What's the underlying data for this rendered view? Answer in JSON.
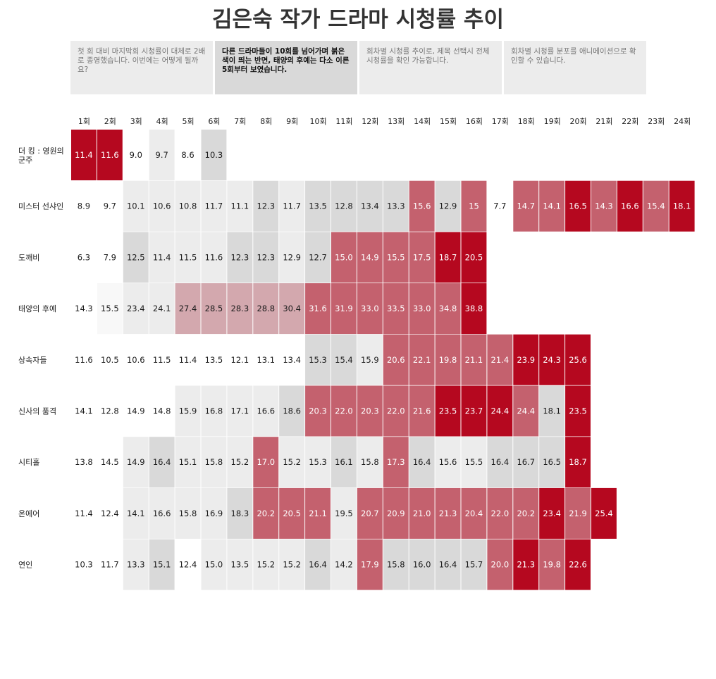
{
  "title": "김은숙 작가 드라마 시청률 추이",
  "steps": [
    {
      "text": "첫 회 대비 마지막회 시청률이 대체로 2배로 종영했습니다. 이번에는 어떻게 될까요?",
      "active": false
    },
    {
      "text": "다른 드라마들이 10회를 넘어가며 붉은색이 띄는 반면, 태양의 후예는 다소 이른 5회부터 보였습니다.",
      "active": true
    },
    {
      "text": "회차별 시청률 추이로, 제목 선택시 전체 시청률을 확인 가능합니다.",
      "active": false
    },
    {
      "text": "회차별 시청률 분포를 애니메이션으로 확인할 수 있습니다.",
      "active": false
    }
  ],
  "colors": {
    "dark_red": "#b5081f",
    "medium_red": "#c4616e",
    "light_pink": "#d3a8ae",
    "light_gray": "#ececec",
    "mid_gray": "#d9d9d9",
    "white": "#ffffff",
    "near_white": "#f8f8f8"
  },
  "chart_data": {
    "type": "heatmap",
    "title": "김은숙 작가 드라마 시청률 추이",
    "columns": [
      "1회",
      "2회",
      "3회",
      "4회",
      "5회",
      "6회",
      "7회",
      "8회",
      "9회",
      "10회",
      "11회",
      "12회",
      "13회",
      "14회",
      "15회",
      "16회",
      "17회",
      "18회",
      "19회",
      "20회",
      "21회",
      "22회",
      "23회",
      "24회"
    ],
    "rows": [
      {
        "name": "더 킹 : 영원의 군주",
        "values": [
          "11.4",
          "11.6",
          "9.0",
          "9.7",
          "8.6",
          "10.3"
        ],
        "colors": [
          "R",
          "R",
          "W",
          "G",
          "W",
          "D"
        ]
      },
      {
        "name": "미스터 선샤인",
        "values": [
          "8.9",
          "9.7",
          "10.1",
          "10.6",
          "10.8",
          "11.7",
          "11.1",
          "12.3",
          "11.7",
          "13.5",
          "12.8",
          "13.4",
          "13.3",
          "15.6",
          "12.9",
          "15",
          "7.7",
          "14.7",
          "14.1",
          "16.5",
          "14.3",
          "16.6",
          "15.4",
          "18.1"
        ],
        "colors": [
          "W",
          "W",
          "G",
          "G",
          "G",
          "G",
          "G",
          "D",
          "G",
          "D",
          "D",
          "D",
          "D",
          "M",
          "D",
          "M",
          "W",
          "M",
          "M",
          "R",
          "M",
          "R",
          "M",
          "R"
        ]
      },
      {
        "name": "도깨비",
        "values": [
          "6.3",
          "7.9",
          "12.5",
          "11.4",
          "11.5",
          "11.6",
          "12.3",
          "12.3",
          "12.9",
          "12.7",
          "15.0",
          "14.9",
          "15.5",
          "17.5",
          "18.7",
          "20.5"
        ],
        "colors": [
          "W",
          "W",
          "D",
          "G",
          "G",
          "G",
          "D",
          "D",
          "G",
          "D",
          "M",
          "M",
          "M",
          "M",
          "R",
          "R"
        ]
      },
      {
        "name": "태양의 후예",
        "values": [
          "14.3",
          "15.5",
          "23.4",
          "24.1",
          "27.4",
          "28.5",
          "28.3",
          "28.8",
          "30.4",
          "31.6",
          "31.9",
          "33.0",
          "33.5",
          "33.0",
          "34.8",
          "38.8"
        ],
        "colors": [
          "W",
          "N",
          "G",
          "G",
          "P",
          "P",
          "P",
          "P",
          "P",
          "M",
          "M",
          "M",
          "M",
          "M",
          "M",
          "R"
        ]
      },
      {
        "name": "상속자들",
        "values": [
          "11.6",
          "10.5",
          "10.6",
          "11.5",
          "11.4",
          "13.5",
          "12.1",
          "13.1",
          "13.4",
          "15.3",
          "15.4",
          "15.9",
          "20.6",
          "22.1",
          "19.8",
          "21.1",
          "21.4",
          "23.9",
          "24.3",
          "25.6"
        ],
        "colors": [
          "W",
          "W",
          "W",
          "W",
          "W",
          "W",
          "W",
          "W",
          "W",
          "D",
          "D",
          "G",
          "M",
          "M",
          "M",
          "M",
          "M",
          "R",
          "R",
          "R"
        ]
      },
      {
        "name": "신사의 품격",
        "values": [
          "14.1",
          "12.8",
          "14.9",
          "14.8",
          "15.9",
          "16.8",
          "17.1",
          "16.6",
          "18.6",
          "20.3",
          "22.0",
          "20.3",
          "22.0",
          "21.6",
          "23.5",
          "23.7",
          "24.4",
          "24.4",
          "18.1",
          "23.5"
        ],
        "colors": [
          "W",
          "W",
          "W",
          "W",
          "G",
          "G",
          "G",
          "G",
          "D",
          "M",
          "M",
          "M",
          "M",
          "M",
          "R",
          "R",
          "R",
          "M",
          "D",
          "R"
        ]
      },
      {
        "name": "시티홀",
        "values": [
          "13.8",
          "14.5",
          "14.9",
          "16.4",
          "15.1",
          "15.8",
          "15.2",
          "17.0",
          "15.2",
          "15.3",
          "16.1",
          "15.8",
          "17.3",
          "16.4",
          "15.6",
          "15.5",
          "16.4",
          "16.7",
          "16.5",
          "18.7"
        ],
        "colors": [
          "W",
          "W",
          "G",
          "D",
          "G",
          "G",
          "G",
          "M",
          "G",
          "G",
          "D",
          "G",
          "M",
          "D",
          "G",
          "G",
          "D",
          "D",
          "D",
          "R"
        ]
      },
      {
        "name": "온에어",
        "values": [
          "11.4",
          "12.4",
          "14.1",
          "16.6",
          "15.8",
          "16.9",
          "18.3",
          "20.2",
          "20.5",
          "21.1",
          "19.5",
          "20.7",
          "20.9",
          "21.0",
          "21.3",
          "20.4",
          "22.0",
          "20.2",
          "23.4",
          "21.9",
          "25.4"
        ],
        "colors": [
          "W",
          "W",
          "G",
          "G",
          "G",
          "G",
          "D",
          "M",
          "M",
          "M",
          "G",
          "M",
          "M",
          "M",
          "M",
          "M",
          "M",
          "M",
          "R",
          "M",
          "R"
        ]
      },
      {
        "name": "연인",
        "values": [
          "10.3",
          "11.7",
          "13.3",
          "15.1",
          "12.4",
          "15.0",
          "13.5",
          "15.2",
          "15.2",
          "16.4",
          "14.2",
          "17.9",
          "15.8",
          "16.0",
          "16.4",
          "15.7",
          "20.0",
          "21.3",
          "19.8",
          "22.6"
        ],
        "colors": [
          "W",
          "W",
          "G",
          "D",
          "W",
          "G",
          "G",
          "G",
          "G",
          "D",
          "G",
          "M",
          "D",
          "D",
          "D",
          "D",
          "M",
          "R",
          "M",
          "R"
        ]
      }
    ]
  }
}
